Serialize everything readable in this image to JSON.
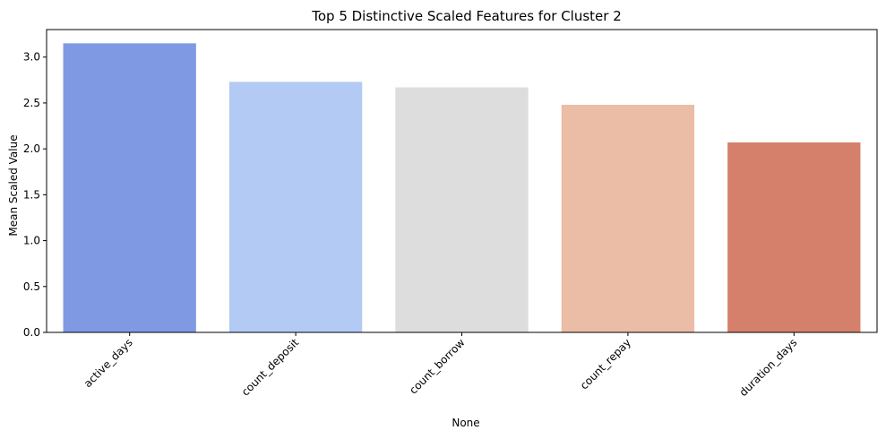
{
  "chart_data": {
    "type": "bar",
    "title": "Top 5 Distinctive Scaled Features for Cluster 2",
    "xlabel": "None",
    "ylabel": "Mean Scaled Value",
    "categories": [
      "active_days",
      "count_deposit",
      "count_borrow",
      "count_repay",
      "duration_days"
    ],
    "values": [
      3.15,
      2.73,
      2.67,
      2.48,
      2.07
    ],
    "colors": [
      "#7f9ae3",
      "#b3caf4",
      "#dddddd",
      "#ebbca6",
      "#d5806b"
    ],
    "ylim": [
      0,
      3.3
    ],
    "yticks": [
      "0.0",
      "0.5",
      "1.0",
      "1.5",
      "2.0",
      "2.5",
      "3.0"
    ],
    "ytick_values": [
      0,
      0.5,
      1.0,
      1.5,
      2.0,
      2.5,
      3.0
    ],
    "grid": false,
    "legend": "none"
  }
}
